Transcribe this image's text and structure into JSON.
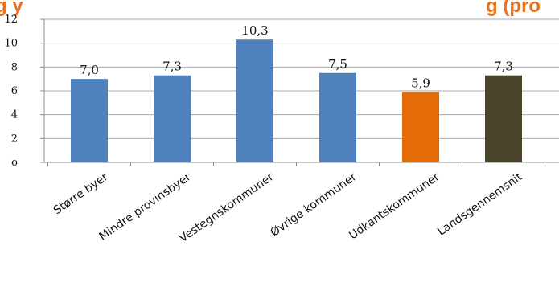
{
  "title_fragment_left": "g y",
  "title_fragment_right": "g (pro",
  "colors": {
    "title": "#e8731c",
    "grid": "#a9a9a9",
    "axis": "#8c8c8c"
  },
  "chart_data": {
    "type": "bar",
    "categories": [
      "Større byer",
      "Mindre provinsbyer",
      "Vestegnskommuner",
      "Øvrige kommuner",
      "Udkantskommuner",
      "Landsgennemsnit"
    ],
    "values": [
      7.0,
      7.3,
      10.3,
      7.5,
      5.9,
      7.3
    ],
    "value_labels": [
      "7,0",
      "7,3",
      "10,3",
      "7,5",
      "5,9",
      "7,3"
    ],
    "bar_colors": [
      "#4f81bd",
      "#4f81bd",
      "#4f81bd",
      "#4f81bd",
      "#e36c09",
      "#4a452a"
    ],
    "yticks": [
      0,
      2,
      4,
      6,
      8,
      10,
      12
    ],
    "ytick_labels": [
      "o",
      "2",
      "4",
      "6",
      "8",
      "10",
      "12"
    ],
    "ylim": [
      0,
      12
    ],
    "grid": true,
    "legend": "none",
    "xlabel": "",
    "ylabel": ""
  }
}
